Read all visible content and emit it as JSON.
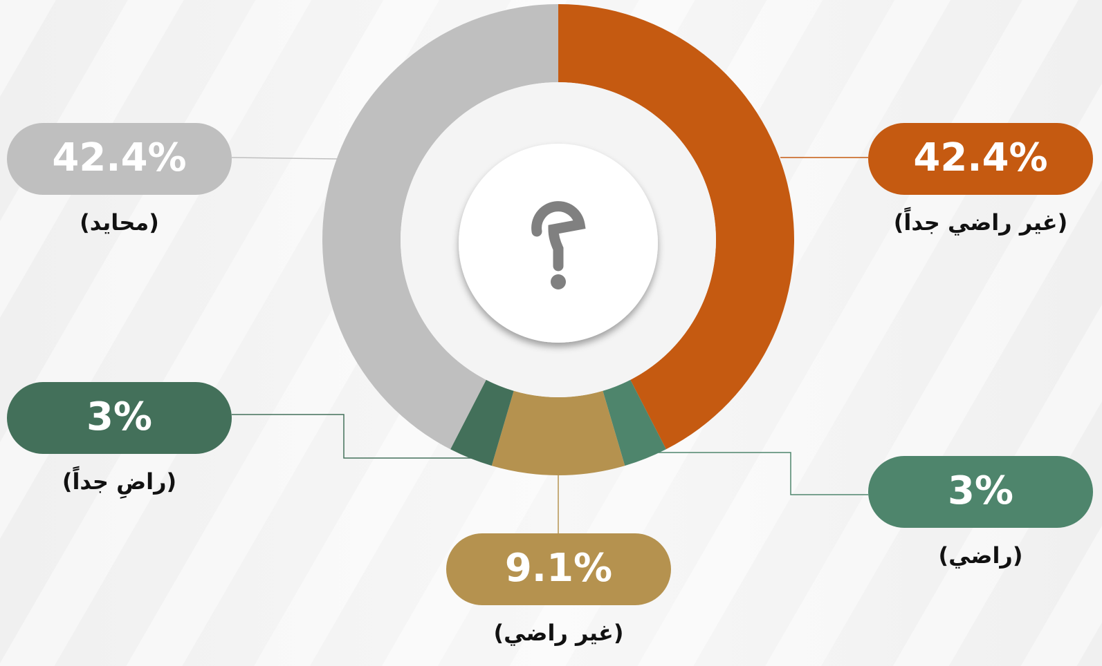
{
  "chart_data": {
    "type": "donut",
    "categories": [
      "(غير راضي جداً)",
      "(راضي)",
      "(غير راضي)",
      "(راضِ جداً)",
      "(محايد)"
    ],
    "values": [
      42.4,
      3,
      9.1,
      3,
      42.4
    ],
    "value_labels": [
      "42.4%",
      "3%",
      "9.1%",
      "3%",
      "42.4%"
    ],
    "colors": [
      "#c55a11",
      "#4e856c",
      "#b5924f",
      "#43705a",
      "#bfbfbf"
    ]
  }
}
